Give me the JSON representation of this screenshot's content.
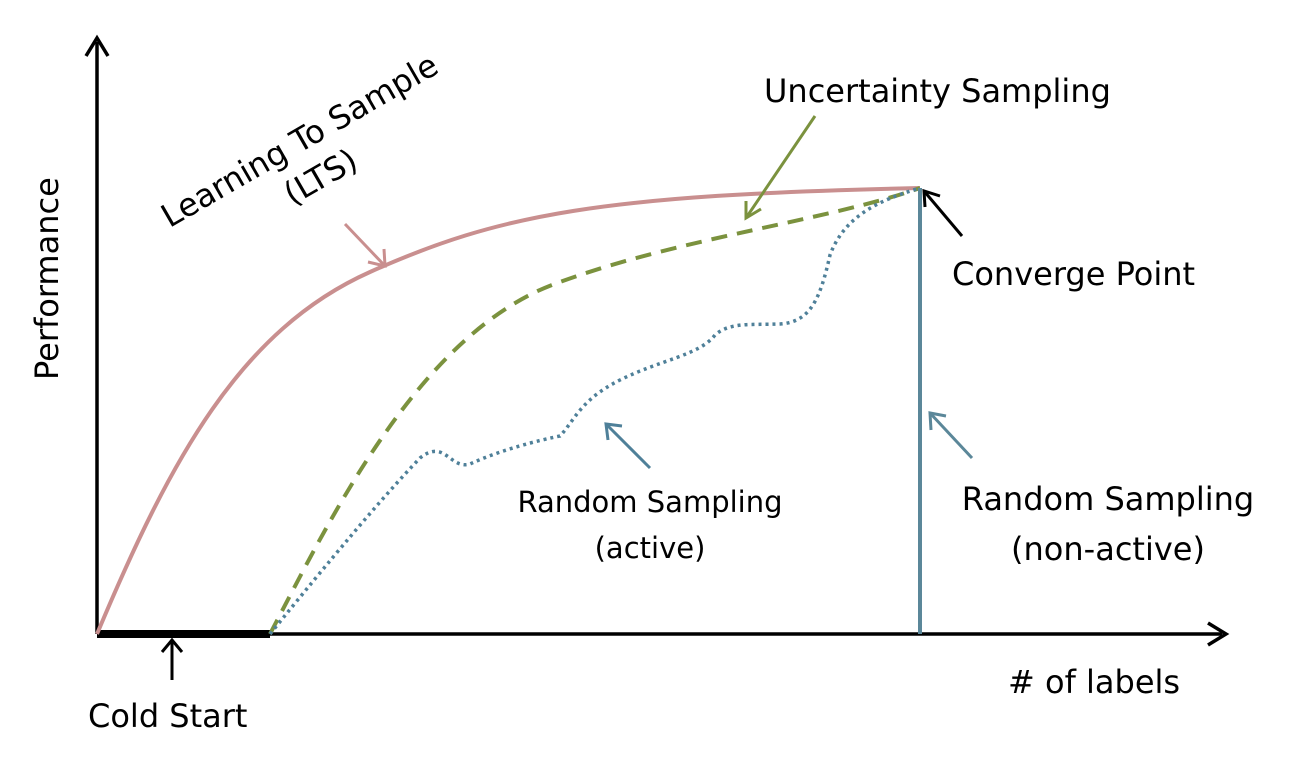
{
  "axes": {
    "y_label": "Performance",
    "x_label": "# of labels"
  },
  "colors": {
    "axis": "#000000",
    "lts": "#c98f8f",
    "uncertainty": "#7b923e",
    "random_active": "#4f8099",
    "random_non_active": "#5b8799"
  },
  "labels": {
    "lts_line1": "Learning To Sample",
    "lts_line2": "(LTS)",
    "uncertainty": "Uncertainty Sampling",
    "converge": "Converge Point",
    "random_active_line1": "Random Sampling",
    "random_active_line2": "(active)",
    "random_non_active_line1": "Random Sampling",
    "random_non_active_line2": "(non-active)",
    "cold_start": "Cold Start"
  },
  "icons": {
    "axis_arrows": "arrow-head-icon",
    "pointer_arrows": "open-arrow-icon"
  }
}
